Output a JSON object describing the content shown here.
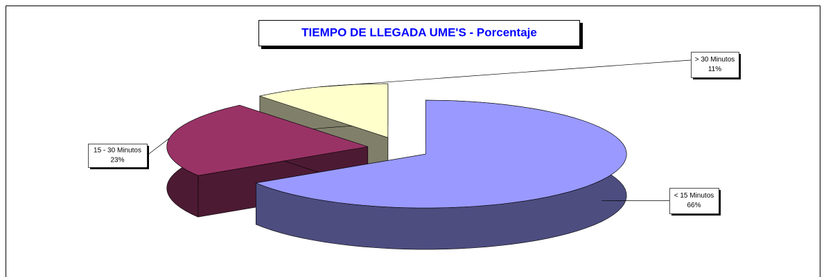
{
  "chart_data": {
    "type": "pie",
    "title": "TIEMPO  DE LLEGADA UME'S - Porcentaje",
    "categories": [
      "< 15 Minutos",
      "15 - 30 Minutos",
      "> 30 Minutos"
    ],
    "values": [
      66,
      23,
      11
    ],
    "value_labels": [
      "66%",
      "23%",
      "11%"
    ],
    "colors": [
      "#9999ff",
      "#993366",
      "#ffffcc"
    ],
    "side_colors": [
      "#4d4d80",
      "#4d1a33",
      "#80806a"
    ]
  }
}
